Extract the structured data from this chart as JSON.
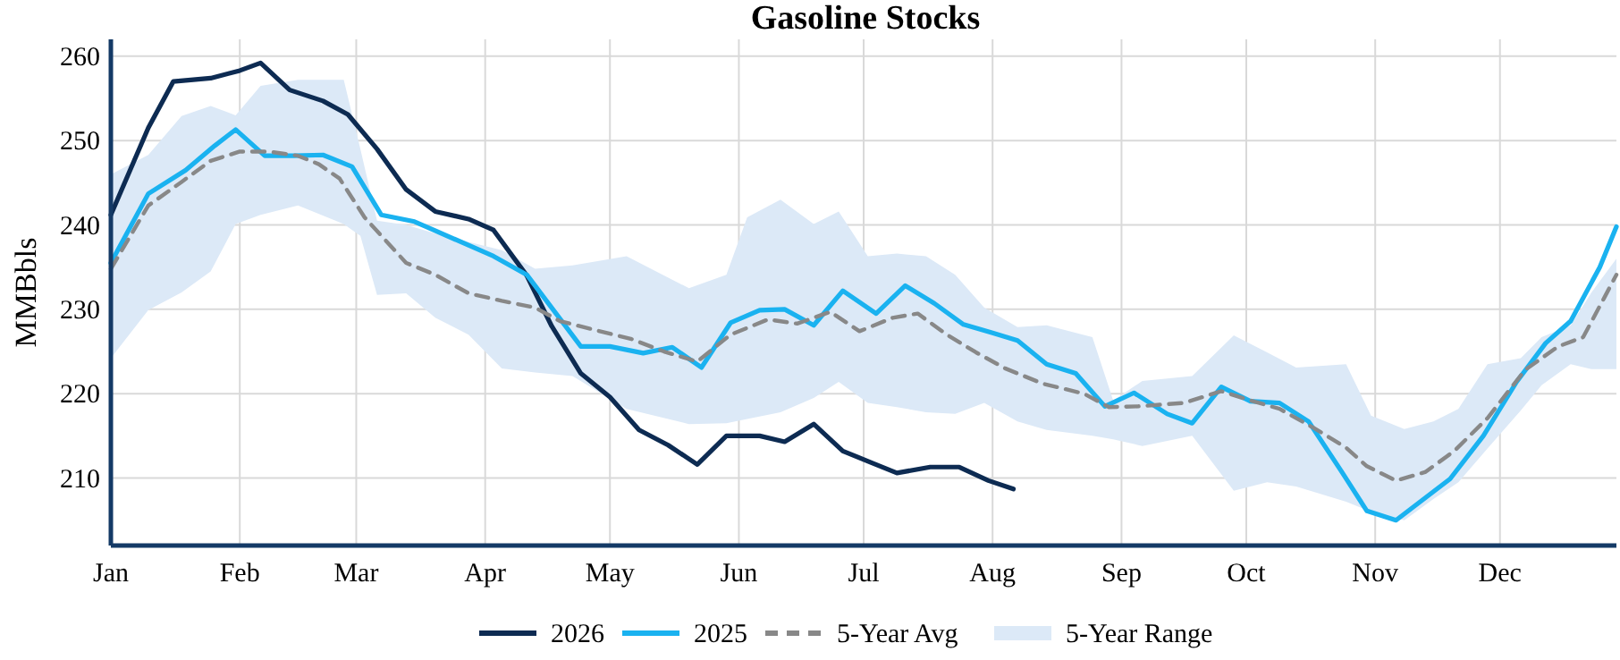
{
  "chart_data": {
    "type": "line",
    "title": "Gasoline Stocks",
    "ylabel": "MMBbls",
    "xlim": [
      "--01-01",
      "--12-29"
    ],
    "ylim": [
      202,
      262
    ],
    "xticks": [
      {
        "value": "--01-01",
        "label": "Jan"
      },
      {
        "value": "--02-01",
        "label": "Feb"
      },
      {
        "value": "--03-01",
        "label": "Mar"
      },
      {
        "value": "--04-01",
        "label": "Apr"
      },
      {
        "value": "--05-01",
        "label": "May"
      },
      {
        "value": "--06-01",
        "label": "Jun"
      },
      {
        "value": "--07-01",
        "label": "Jul"
      },
      {
        "value": "--08-01",
        "label": "Aug"
      },
      {
        "value": "--09-01",
        "label": "Sep"
      },
      {
        "value": "--10-01",
        "label": "Oct"
      },
      {
        "value": "--11-01",
        "label": "Nov"
      },
      {
        "value": "--12-01",
        "label": "Dec"
      }
    ],
    "yticks": [
      210,
      220,
      230,
      240,
      250,
      260
    ],
    "grid": true,
    "legend": "bottom",
    "series": [
      {
        "name": "2026",
        "color": "#0d2b52",
        "x": [
          "--01-01",
          "--01-10",
          "--01-16",
          "--01-25",
          "--02-01",
          "--02-06",
          "--02-13",
          "--02-21",
          "--02-27",
          "--03-06",
          "--03-13",
          "--03-20",
          "--03-28",
          "--04-03",
          "--04-11",
          "--04-17",
          "--04-24",
          "--05-01",
          "--05-08",
          "--05-15",
          "--05-22",
          "--05-29",
          "--06-06",
          "--06-12",
          "--06-19",
          "--06-26",
          "--07-03",
          "--07-09",
          "--07-17",
          "--07-24",
          "--07-31",
          "--08-06"
        ],
        "values": [
          241.2,
          251.5,
          257,
          257.4,
          258.3,
          259.2,
          256,
          254.7,
          253.1,
          249,
          244.2,
          241.6,
          240.7,
          239.4,
          234,
          228,
          222.4,
          219.6,
          215.7,
          213.9,
          211.6,
          215,
          215,
          214.3,
          216.4,
          213.2,
          211.8,
          210.6,
          211.3,
          211.3,
          209.7,
          208.7
        ]
      },
      {
        "name": "2025",
        "color": "#1ab2f0",
        "x": [
          "--01-01",
          "--01-10",
          "--01-19",
          "--01-26",
          "--01-31",
          "--02-07",
          "--02-14",
          "--02-21",
          "--02-28",
          "--03-07",
          "--03-15",
          "--04-03",
          "--04-11",
          "--04-24",
          "--05-01",
          "--05-09",
          "--05-16",
          "--05-23",
          "--05-30",
          "--06-06",
          "--06-12",
          "--06-19",
          "--06-26",
          "--07-04",
          "--07-11",
          "--07-18",
          "--07-25",
          "--08-01",
          "--08-07",
          "--08-14",
          "--08-21",
          "--08-28",
          "--09-04",
          "--09-12",
          "--09-18",
          "--09-25",
          "--10-02",
          "--10-09",
          "--10-16",
          "--10-24",
          "--10-30",
          "--11-06",
          "--11-19",
          "--11-27",
          "--12-05",
          "--12-12",
          "--12-18",
          "--12-25",
          "--12-29"
        ],
        "values": [
          235.5,
          243.7,
          246.5,
          249.4,
          251.3,
          248.2,
          248.2,
          248.3,
          246.9,
          241.2,
          240.4,
          236.3,
          234.1,
          225.6,
          225.6,
          224.8,
          225.5,
          223.1,
          228.4,
          229.9,
          230,
          228.1,
          232.2,
          229.5,
          232.8,
          230.7,
          228.2,
          227.2,
          226.3,
          223.5,
          222.4,
          218.5,
          220.1,
          217.6,
          216.5,
          220.8,
          219.1,
          218.9,
          216.7,
          210.7,
          206.1,
          205,
          209.9,
          215,
          221.4,
          226,
          228.6,
          235,
          239.8
        ]
      },
      {
        "name": "5-Year Avg",
        "color": "#888888",
        "line_style": "dashed",
        "x": [
          "--01-01",
          "--01-10",
          "--01-18",
          "--01-25",
          "--02-01",
          "--02-08",
          "--02-15",
          "--02-20",
          "--02-25",
          "--03-03",
          "--03-13",
          "--03-20",
          "--03-28",
          "--04-05",
          "--04-13",
          "--04-19",
          "--04-27",
          "--05-06",
          "--05-14",
          "--05-22",
          "--05-30",
          "--06-08",
          "--06-15",
          "--06-23",
          "--06-30",
          "--07-08",
          "--07-14",
          "--07-21",
          "--07-28",
          "--08-04",
          "--08-13",
          "--08-23",
          "--08-29",
          "--09-05",
          "--09-16",
          "--09-25",
          "--10-02",
          "--10-09",
          "--10-17",
          "--10-25",
          "--10-30",
          "--11-06",
          "--11-13",
          "--11-20",
          "--11-28",
          "--12-07",
          "--12-15",
          "--12-21",
          "--12-26",
          "--12-29"
        ],
        "values": [
          234.8,
          242.3,
          245.1,
          247.6,
          248.7,
          248.7,
          248.2,
          247.2,
          245.5,
          240.9,
          235.5,
          234.1,
          231.9,
          231,
          230.2,
          228.6,
          227.6,
          226.5,
          225,
          223.8,
          227,
          228.8,
          228.3,
          229.7,
          227.4,
          229,
          229.5,
          227,
          224.9,
          223,
          221.2,
          220,
          218.4,
          218.5,
          218.9,
          220.3,
          219.2,
          218.2,
          216,
          213.6,
          211.4,
          209.7,
          210.7,
          213.2,
          217.1,
          222.8,
          225.6,
          226.7,
          231.3,
          234.1
        ]
      },
      {
        "name": "5-Year Range",
        "type": "area",
        "color": "#dce9f7",
        "x": [
          "--01-01",
          "--01-10",
          "--01-18",
          "--01-25",
          "--01-31",
          "--02-06",
          "--02-15",
          "--02-26",
          "--03-02",
          "--03-06",
          "--03-13",
          "--03-20",
          "--03-28",
          "--04-05",
          "--04-13",
          "--04-22",
          "--05-05",
          "--05-20",
          "--05-29",
          "--06-03",
          "--06-11",
          "--06-19",
          "--06-25",
          "--07-02",
          "--07-09",
          "--07-16",
          "--07-23",
          "--07-30",
          "--08-07",
          "--08-14",
          "--08-25",
          "--08-30",
          "--09-06",
          "--09-18",
          "--09-28",
          "--10-06",
          "--10-13",
          "--10-25",
          "--10-31",
          "--11-08",
          "--11-15",
          "--11-21",
          "--11-28",
          "--12-06",
          "--12-11",
          "--12-18",
          "--12-23",
          "--12-29"
        ],
        "values": [
          null,
          null,
          null,
          null,
          null,
          null,
          null,
          null,
          null,
          null,
          null,
          null,
          null,
          null,
          null,
          null,
          null,
          null,
          null,
          null,
          null,
          null,
          null,
          null,
          null,
          null,
          null,
          null,
          null,
          null,
          null,
          null,
          null,
          null,
          null,
          null,
          null,
          null,
          null,
          null,
          null,
          null,
          null,
          null,
          null,
          null,
          null,
          null
        ],
        "upper": [
          246,
          248.3,
          252.9,
          254.1,
          253,
          256.5,
          257.2,
          257.2,
          249,
          240.5,
          240,
          239,
          238,
          237,
          234.8,
          235.2,
          236.3,
          232.5,
          234.1,
          240.9,
          243,
          240.1,
          241.6,
          236.3,
          236.6,
          236.3,
          234.1,
          230.2,
          227.9,
          228.1,
          226.7,
          219.2,
          221.5,
          222.1,
          226.9,
          224.9,
          223.1,
          223.5,
          217.4,
          215.8,
          216.7,
          218.2,
          223.5,
          224.2,
          226.7,
          228.1,
          232,
          236
        ],
        "lower": [
          224.2,
          229.9,
          232,
          234.5,
          240.1,
          241.2,
          242.3,
          240.1,
          238.7,
          231.7,
          231.9,
          229,
          227,
          223,
          222.5,
          222.1,
          218.2,
          216.4,
          216.5,
          217,
          217.8,
          219.5,
          221.4,
          218.9,
          218.4,
          217.8,
          217.6,
          218.9,
          216.7,
          215.7,
          215,
          214.6,
          213.8,
          215,
          208.5,
          209.5,
          209,
          207.2,
          206,
          205,
          207.5,
          209.5,
          213.5,
          218,
          221,
          223.5,
          222.9,
          222.9
        ]
      }
    ]
  }
}
